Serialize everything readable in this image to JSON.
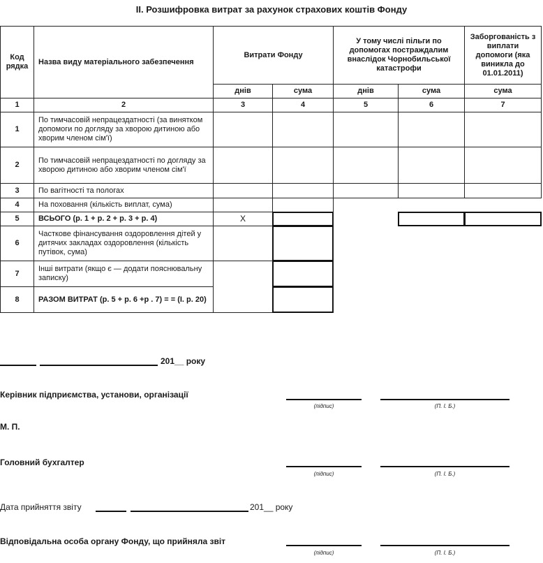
{
  "title": "II. Розшифровка витрат за рахунок страхових коштів Фонду",
  "table": {
    "headers": {
      "code": "Код рядка",
      "name": "Назва виду матеріального забезпечення",
      "fund_expenses": "Витрати Фонду",
      "chernobyl": "У тому числі пільги по допомогах постраждалим внаслідок Чорнобильської катастрофи",
      "arrears": "Заборгованість з виплати допомоги (яка виникла до 01.01.2011)",
      "days": "днів",
      "sum": "сума"
    },
    "column_numbers": [
      "1",
      "2",
      "3",
      "4",
      "5",
      "6",
      "7"
    ],
    "rows": [
      {
        "code": "1",
        "name": "По тимчасовій непрацездатності (за винятком допомоги по догляду за хворою дитиною або хворим членом сім'ї)"
      },
      {
        "code": "2",
        "name": "По тимчасовій непрацездатності по догляду за хворою дитиною або хворим членом сім'ї"
      },
      {
        "code": "3",
        "name": "По вагітності та пологах"
      },
      {
        "code": "4",
        "name": "На поховання (кількість виплат, сума)"
      },
      {
        "code": "5",
        "name": "ВСЬОГО (р. 1 + р. 2 + р. 3 + р. 4)",
        "days": "X"
      },
      {
        "code": "6",
        "name": "Часткове фінансування оздоровлення дітей у дитячих закладах оздоровлення (кількість путівок, сума)"
      },
      {
        "code": "7",
        "name": "Інші витрати (якщо є — додати пояснювальну записку)"
      },
      {
        "code": "8",
        "name": "РАЗОМ ВИТРАТ (р. 5 + р. 6 +р . 7) = = (І. р. 20)"
      }
    ]
  },
  "signatures": {
    "date_suffix": "201__ року",
    "manager": "Керівник підприємства, установи, організації",
    "stamp": "М. П.",
    "accountant": "Головний бухгалтер",
    "acceptance_date": "Дата прийняття звіту",
    "acceptance_suffix": "201__ року",
    "responsible": "Відповідальна особа органу Фонду, що прийняла звіт",
    "signature_caption": "(підпис)",
    "name_caption": "(П. І. Б.)"
  }
}
